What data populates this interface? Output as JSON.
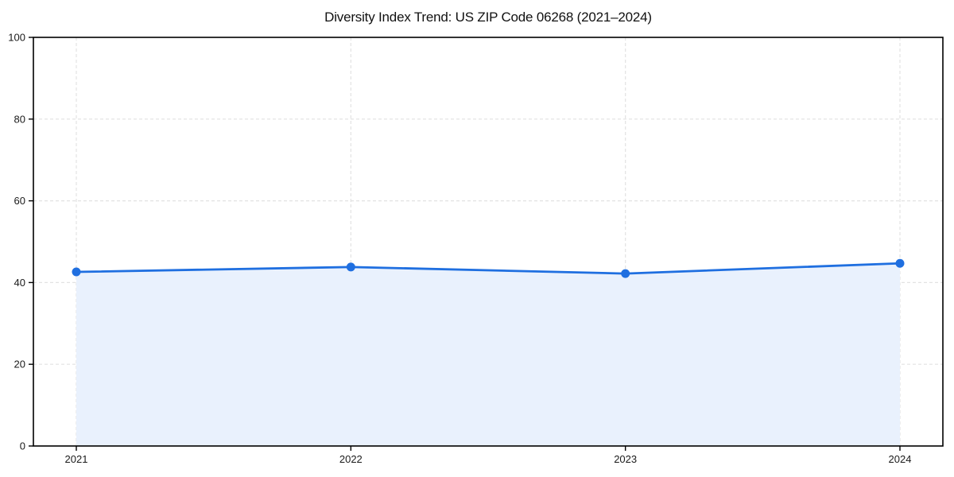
{
  "chart_data": {
    "type": "area",
    "title": "Diversity Index Trend: US ZIP Code 06268 (2021–2024)",
    "categories": [
      "2021",
      "2022",
      "2023",
      "2024"
    ],
    "series": [
      {
        "name": "Diversity Index",
        "values": [
          42.6,
          43.8,
          42.2,
          44.7
        ]
      }
    ],
    "xlabel": "",
    "ylabel": "",
    "ylim": [
      0,
      100
    ],
    "yticks": [
      0,
      20,
      40,
      60,
      80,
      100
    ],
    "grid": true,
    "legend": false,
    "colors": {
      "line": "#1f6fe0",
      "marker": "#1f6fe0",
      "fill": "#e9f1fd",
      "grid": "#e2e2e2",
      "spine": "#000000",
      "text": "#1a1a1a",
      "background": "#ffffff"
    }
  }
}
